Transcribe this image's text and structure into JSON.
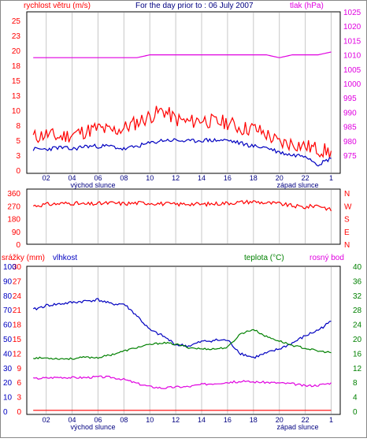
{
  "title": "For the day prior to : 06 July 2007",
  "panel1": {
    "left_axis_label": "rychlost větru (m/s)",
    "right_axis_label": "tlak (hPa)",
    "left_ticks": [
      "0",
      "3",
      "5",
      "8",
      "10",
      "13",
      "15",
      "18",
      "20",
      "23",
      "25"
    ],
    "right_ticks": [
      "975",
      "980",
      "985",
      "990",
      "995",
      "1000",
      "1005",
      "1010",
      "1015",
      "1020",
      "1025"
    ],
    "x_ticks": [
      "02",
      "04",
      "06",
      "08",
      "10",
      "12",
      "14",
      "16",
      "18",
      "20",
      "22",
      "1"
    ],
    "sunrise_label": "východ slunce",
    "sunset_label": "západ slunce",
    "colors": {
      "gust": "#ff0000",
      "speed": "#0000c0",
      "pressure": "#e000e0",
      "left_axis": "#ff0000",
      "right_axis": "#e000e0"
    }
  },
  "panel2": {
    "left_ticks": [
      "0",
      "90",
      "180",
      "270",
      "360"
    ],
    "right_ticks": [
      "N",
      "E",
      "S",
      "W",
      "N"
    ],
    "colors": {
      "direction": "#ff0000",
      "axis": "#ff0000"
    }
  },
  "panel3": {
    "rain_label": "srážky (mm)",
    "humidity_label": "vlhkost",
    "temp_label": "teplota (°C)",
    "dew_label": "rosný bod",
    "left_rain_ticks": [
      "0",
      "3",
      "6",
      "9",
      "12",
      "15",
      "18",
      "21",
      "24",
      "27",
      "30"
    ],
    "left_humidity_ticks": [
      "0",
      "10",
      "20",
      "30",
      "40",
      "50",
      "60",
      "70",
      "80",
      "90",
      "100"
    ],
    "right_ticks": [
      "0",
      "4",
      "8",
      "12",
      "16",
      "20",
      "24",
      "28",
      "32",
      "36",
      "40"
    ],
    "x_ticks": [
      "02",
      "04",
      "06",
      "08",
      "10",
      "12",
      "14",
      "16",
      "18",
      "20",
      "22",
      "1"
    ],
    "sunrise_label": "východ slunce",
    "sunset_label": "západ slunce",
    "colors": {
      "humidity": "#0000c0",
      "temperature": "#008000",
      "dew": "#e000e0",
      "rain": "#ff0000",
      "rain_axis": "#ff0000",
      "humidity_axis": "#0000c0",
      "temp_axis": "#008000",
      "dew_axis": "#e000e0"
    }
  },
  "chart_data": [
    {
      "type": "line",
      "title": "For the day prior to : 06 July 2007",
      "x": [
        1,
        2,
        3,
        4,
        5,
        6,
        7,
        8,
        9,
        10,
        11,
        12,
        13,
        14,
        15,
        16,
        17,
        18,
        19,
        20,
        21,
        22,
        23,
        24
      ],
      "xlim": [
        0.5,
        24.7
      ],
      "series": [
        {
          "name": "rychlost větru (m/s)",
          "values": [
            5.5,
            6,
            5.5,
            6,
            6.5,
            7,
            6.5,
            7,
            8,
            9,
            10,
            8.5,
            8,
            8.5,
            8,
            8,
            7,
            7,
            6,
            4.5,
            4.5,
            4,
            3.5,
            3
          ]
        },
        {
          "name": "rychlost větru (m/s)",
          "values": [
            3.5,
            3.5,
            3.8,
            3.5,
            4,
            4,
            4,
            3.5,
            4,
            4.5,
            5,
            5,
            4.8,
            5,
            5,
            5,
            4.5,
            4,
            3.8,
            3,
            2.5,
            2.5,
            1,
            2
          ]
        },
        {
          "name": "tlak (hPa)",
          "values": [
            1009,
            1009,
            1009,
            1009,
            1009,
            1009,
            1009,
            1009,
            1009,
            1010,
            1010,
            1010,
            1010,
            1010,
            1010,
            1010,
            1010,
            1010,
            1010,
            1009,
            1010,
            1010,
            1010,
            1011
          ]
        }
      ],
      "ylim_left": [
        0,
        25
      ],
      "ylim_right": [
        975,
        1025
      ]
    },
    {
      "type": "line",
      "x": [
        1,
        2,
        3,
        4,
        5,
        6,
        7,
        8,
        9,
        10,
        11,
        12,
        13,
        14,
        15,
        16,
        17,
        18,
        19,
        20,
        21,
        22,
        23,
        24
      ],
      "xlim": [
        0.5,
        24.7
      ],
      "series": [
        {
          "name": "N E S W N",
          "values": [
            270,
            280,
            285,
            290,
            280,
            285,
            290,
            285,
            290,
            290,
            285,
            280,
            285,
            280,
            285,
            290,
            295,
            300,
            290,
            285,
            270,
            260,
            275,
            240
          ]
        }
      ],
      "ylim": [
        0,
        360
      ]
    },
    {
      "type": "line",
      "x": [
        1,
        2,
        3,
        4,
        5,
        6,
        7,
        8,
        9,
        10,
        11,
        12,
        13,
        14,
        15,
        16,
        17,
        18,
        19,
        20,
        21,
        22,
        23,
        24
      ],
      "xlim": [
        0.5,
        24.7
      ],
      "series": [
        {
          "name": "vlhkost",
          "values": [
            70,
            73,
            74,
            75,
            76,
            77,
            74,
            74,
            66,
            56,
            52,
            46,
            45,
            48,
            49,
            49,
            40,
            37,
            40,
            43,
            47,
            52,
            56,
            62
          ]
        },
        {
          "name": "teplota (°C)",
          "values": [
            14.7,
            14.7,
            14.5,
            14.5,
            14.9,
            14.8,
            15.6,
            16.6,
            17.6,
            18.4,
            18.9,
            18.5,
            17.6,
            17.2,
            17.2,
            17.6,
            21.4,
            22.6,
            20.6,
            19.4,
            18.2,
            17.4,
            16.6,
            16.2
          ]
        },
        {
          "name": "rosný bod",
          "values": [
            9,
            9.2,
            9.4,
            9.3,
            9.3,
            9.5,
            9.4,
            8.8,
            7.7,
            6.8,
            6.4,
            6.7,
            6.8,
            7.4,
            7.7,
            8.0,
            8.2,
            8.1,
            8.0,
            7.8,
            7.6,
            7.0,
            7.2,
            7.8
          ]
        },
        {
          "name": "srážky (mm)",
          "values": [
            0.2,
            0.2,
            0.2,
            0.2,
            0.2,
            0.2,
            0.2,
            0.2,
            0.2,
            0.2,
            0.2,
            0.2,
            0.2,
            0.2,
            0.2,
            0.2,
            0.2,
            0.2,
            0.2,
            0.2,
            0.2,
            0.2,
            0.2,
            0.2
          ]
        }
      ],
      "ylim_rain": [
        0,
        30
      ],
      "ylim_humidity": [
        0,
        100
      ],
      "ylim_right": [
        0,
        40
      ]
    }
  ]
}
